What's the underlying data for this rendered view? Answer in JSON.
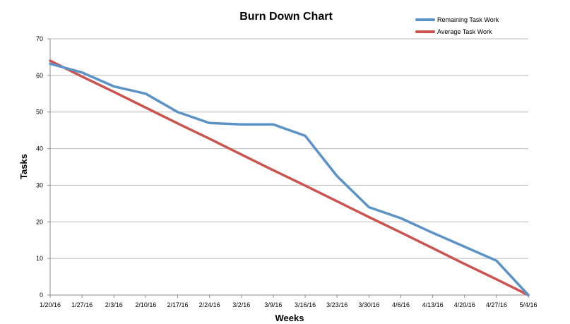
{
  "chart_data": {
    "type": "line",
    "title": "Burn Down Chart",
    "xlabel": "Weeks",
    "ylabel": "Tasks",
    "ylim": [
      0,
      70
    ],
    "yticks": [
      0,
      10,
      20,
      30,
      40,
      50,
      60,
      70
    ],
    "grid": true,
    "legend_position": "top-right",
    "categories": [
      "1/20/16",
      "1/27/16",
      "2/3/16",
      "2/10/16",
      "2/17/16",
      "2/24/16",
      "3/2/16",
      "3/9/16",
      "3/16/16",
      "3/23/16",
      "3/30/16",
      "4/6/16",
      "4/13/16",
      "4/20/16",
      "4/27/16",
      "5/4/16"
    ],
    "series": [
      {
        "name": "Remaining Task Work",
        "color": "#5b93c7",
        "values": [
          63.2,
          60.8,
          57,
          55,
          50,
          47,
          46.6,
          46.6,
          43.5,
          32.5,
          24,
          21,
          17,
          13.2,
          9.4,
          0
        ]
      },
      {
        "name": "Average Task Work",
        "color": "#cb5350",
        "values": [
          64,
          59.7,
          55.5,
          51.2,
          46.9,
          42.7,
          38.4,
          34.1,
          29.9,
          25.6,
          21.3,
          17.1,
          12.8,
          8.5,
          4.3,
          0
        ]
      }
    ]
  }
}
